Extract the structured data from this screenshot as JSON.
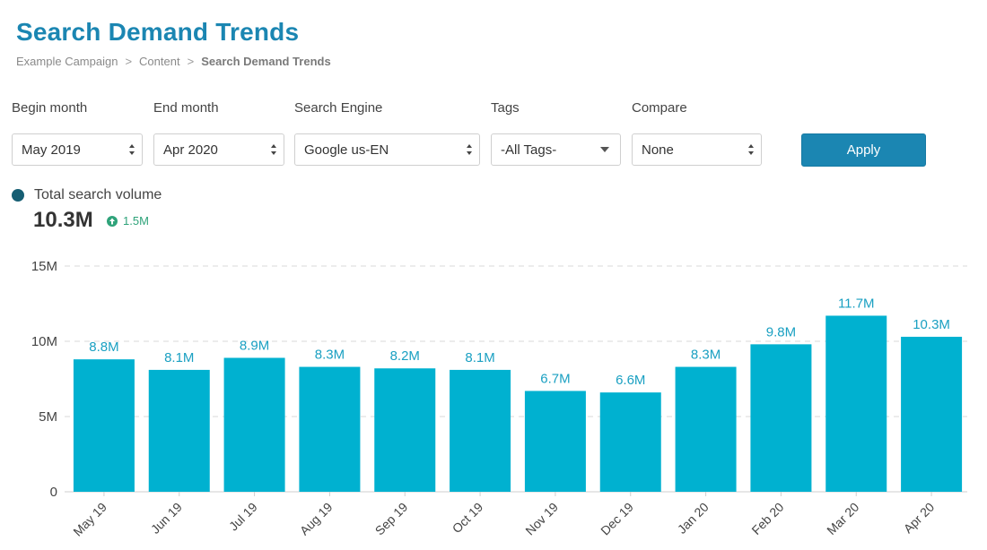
{
  "header": {
    "title": "Search Demand Trends",
    "breadcrumb": [
      "Example Campaign",
      "Content",
      "Search Demand Trends"
    ],
    "breadcrumb_sep": ">"
  },
  "filters": {
    "begin_month": {
      "label": "Begin month",
      "value": "May 2019"
    },
    "end_month": {
      "label": "End month",
      "value": "Apr 2020"
    },
    "search_engine": {
      "label": "Search Engine",
      "value": "Google us-EN"
    },
    "tags": {
      "label": "Tags",
      "value": "-All Tags-"
    },
    "compare": {
      "label": "Compare",
      "value": "None"
    },
    "apply_label": "Apply"
  },
  "summary": {
    "legend_label": "Total search volume",
    "total": "10.3M",
    "change": "1.5M"
  },
  "colors": {
    "bar": "#00b1d0",
    "accent": "#1b86b2",
    "positive": "#2fa37a",
    "grid": "#d9d9d9"
  },
  "chart_data": {
    "type": "bar",
    "title": "",
    "xlabel": "",
    "ylabel": "",
    "categories": [
      "May 19",
      "Jun 19",
      "Jul 19",
      "Aug 19",
      "Sep 19",
      "Oct 19",
      "Nov 19",
      "Dec 19",
      "Jan 20",
      "Feb 20",
      "Mar 20",
      "Apr 20"
    ],
    "values": [
      8.8,
      8.1,
      8.9,
      8.3,
      8.2,
      8.1,
      6.7,
      6.6,
      8.3,
      9.8,
      11.7,
      10.3
    ],
    "value_labels": [
      "8.8M",
      "8.1M",
      "8.9M",
      "8.3M",
      "8.2M",
      "8.1M",
      "6.7M",
      "6.6M",
      "8.3M",
      "9.8M",
      "11.7M",
      "10.3M"
    ],
    "yticks": [
      0,
      5,
      10,
      15
    ],
    "ytick_labels": [
      "0",
      "5M",
      "10M",
      "15M"
    ],
    "ylim": [
      0,
      15
    ],
    "grid": true
  }
}
